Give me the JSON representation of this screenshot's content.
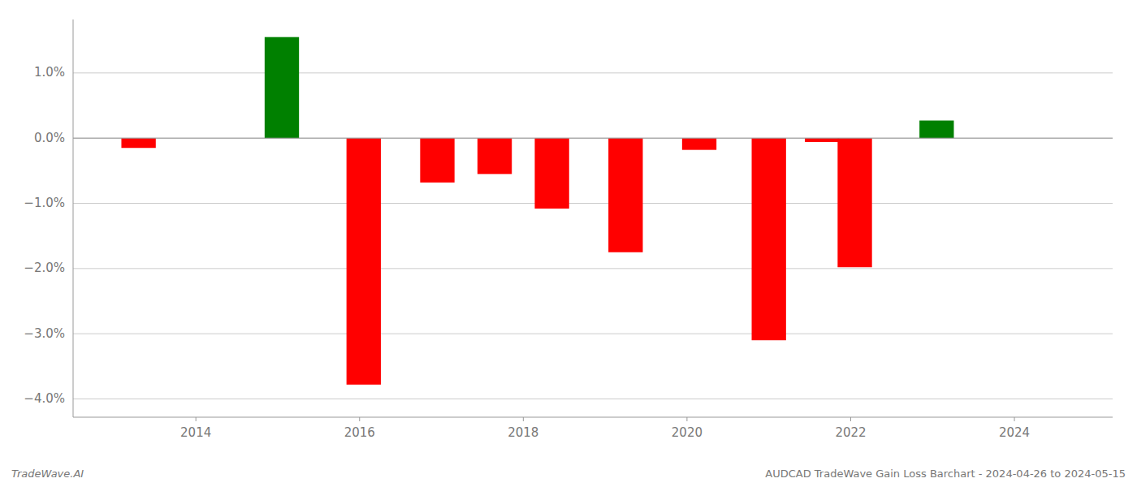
{
  "chart_data": {
    "type": "bar",
    "x": [
      2013.3,
      2015.05,
      2016.05,
      2016.95,
      2017.65,
      2018.35,
      2019.25,
      2020.15,
      2021.0,
      2021.65,
      2022.05,
      2023.05
    ],
    "values": [
      -0.15,
      1.55,
      -3.78,
      -0.68,
      -0.55,
      -1.08,
      -1.75,
      -0.18,
      -3.1,
      -0.06,
      -1.98,
      0.27
    ],
    "colors": [
      "#ff0000",
      "#008000",
      "#ff0000",
      "#ff0000",
      "#ff0000",
      "#ff0000",
      "#ff0000",
      "#ff0000",
      "#ff0000",
      "#ff0000",
      "#ff0000",
      "#008000"
    ],
    "xlim": [
      2012.5,
      2025.2
    ],
    "ylim": [
      -4.28,
      1.82
    ],
    "xticks": [
      2014,
      2016,
      2018,
      2020,
      2022,
      2024
    ],
    "yticks": [
      {
        "value": -4.0,
        "label": "−4.0%"
      },
      {
        "value": -3.0,
        "label": "−3.0%"
      },
      {
        "value": -2.0,
        "label": "−2.0%"
      },
      {
        "value": -1.0,
        "label": "−1.0%"
      },
      {
        "value": 0.0,
        "label": "0.0%"
      },
      {
        "value": 1.0,
        "label": "1.0%"
      }
    ],
    "grid": true,
    "annotations": [
      "TradeWave.AI",
      "AUDCAD TradeWave Gain Loss Barchart - 2024-04-26 to 2024-05-15"
    ]
  }
}
